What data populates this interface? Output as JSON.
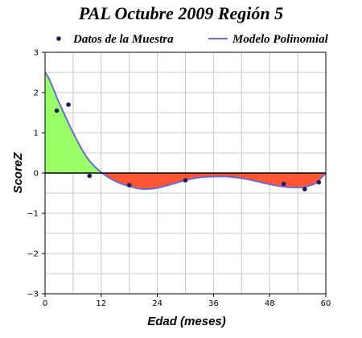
{
  "chart_data": {
    "type": "line",
    "title": "PAL Octubre 2009 Región 5",
    "xlabel": "Edad (meses)",
    "ylabel": "ScoreZ",
    "xlim": [
      0,
      60
    ],
    "ylim": [
      -3,
      3
    ],
    "x_ticks": [
      0,
      12,
      24,
      36,
      48,
      60
    ],
    "y_ticks": [
      3,
      2,
      1,
      0,
      -1,
      -2,
      -3
    ],
    "grid": true,
    "legend_position": "top",
    "series": [
      {
        "name": "Datos de la Muestra",
        "type": "scatter",
        "color": "#1a1a5e",
        "points": [
          {
            "x": 2.5,
            "y": 1.55
          },
          {
            "x": 5,
            "y": 1.7
          },
          {
            "x": 9.5,
            "y": -0.07
          },
          {
            "x": 18,
            "y": -0.3
          },
          {
            "x": 30,
            "y": -0.18
          },
          {
            "x": 51,
            "y": -0.27
          },
          {
            "x": 55.5,
            "y": -0.4
          },
          {
            "x": 58.5,
            "y": -0.23
          }
        ]
      },
      {
        "name": "Modelo Polinomial",
        "type": "line",
        "color": "#6b6bd6",
        "points": [
          {
            "x": 0,
            "y": 2.5
          },
          {
            "x": 3,
            "y": 1.75
          },
          {
            "x": 6,
            "y": 1.0
          },
          {
            "x": 9,
            "y": 0.38
          },
          {
            "x": 12,
            "y": 0.02
          },
          {
            "x": 15,
            "y": -0.2
          },
          {
            "x": 18,
            "y": -0.33
          },
          {
            "x": 21,
            "y": -0.4
          },
          {
            "x": 24,
            "y": -0.37
          },
          {
            "x": 27,
            "y": -0.28
          },
          {
            "x": 30,
            "y": -0.18
          },
          {
            "x": 33,
            "y": -0.11
          },
          {
            "x": 36,
            "y": -0.09
          },
          {
            "x": 39,
            "y": -0.09
          },
          {
            "x": 42,
            "y": -0.13
          },
          {
            "x": 45,
            "y": -0.2
          },
          {
            "x": 48,
            "y": -0.28
          },
          {
            "x": 51,
            "y": -0.34
          },
          {
            "x": 54,
            "y": -0.36
          },
          {
            "x": 56,
            "y": -0.33
          },
          {
            "x": 58,
            "y": -0.24
          },
          {
            "x": 60,
            "y": -0.02
          }
        ]
      }
    ],
    "fill_colors": {
      "positive": "#99ff66",
      "negative": "#ff5533"
    }
  }
}
